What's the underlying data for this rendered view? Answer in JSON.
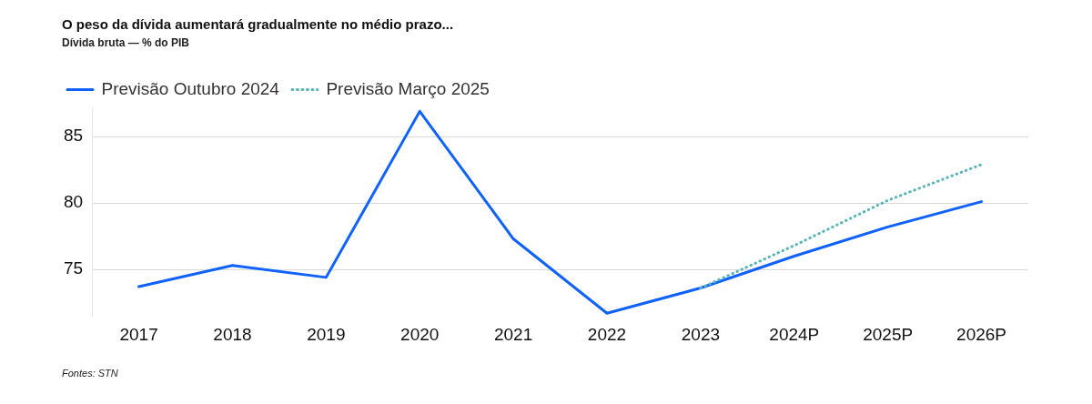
{
  "chart_data": {
    "type": "line",
    "title": "O peso da dívida aumentará gradualmente no médio prazo...",
    "subtitle": "Dívida bruta — % do PIB",
    "categories": [
      "2017",
      "2018",
      "2019",
      "2020",
      "2021",
      "2022",
      "2023",
      "2024P",
      "2025P",
      "2026P"
    ],
    "series": [
      {
        "name": "Previsão Outubro 2024",
        "color": "#0f62fe",
        "line_style": "solid",
        "values": [
          73.7,
          75.3,
          74.4,
          86.9,
          77.3,
          71.7,
          73.6,
          76.0,
          78.2,
          80.1
        ]
      },
      {
        "name": "Previsão Março 2025",
        "color": "#5ab5b8",
        "line_style": "dotted",
        "values": [
          null,
          null,
          null,
          null,
          null,
          null,
          73.6,
          76.8,
          80.2,
          82.9
        ]
      }
    ],
    "ylim": [
      71.5,
      87.2
    ],
    "yticks": [
      75,
      80,
      85
    ],
    "grid": "y",
    "legend": "top left",
    "marker": "none",
    "annotations": [
      "Fontes: STN"
    ]
  }
}
